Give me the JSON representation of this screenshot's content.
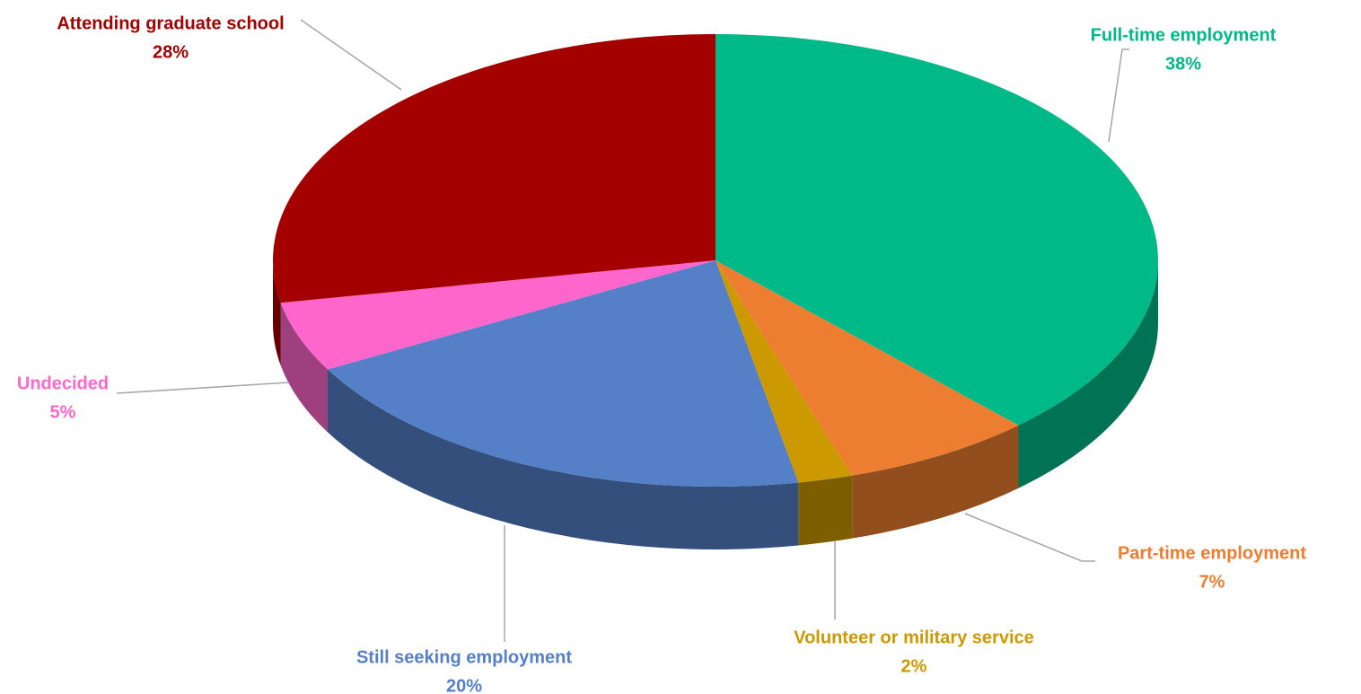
{
  "chart_data": {
    "type": "pie",
    "categories": [
      "Full-time employment",
      "Part-time employment",
      "Volunteer or military service",
      "Still seeking employment",
      "Undecided",
      "Attending graduate school"
    ],
    "values": [
      38,
      7,
      2,
      20,
      5,
      28
    ],
    "value_labels": [
      "38%",
      "7%",
      "2%",
      "20%",
      "5%",
      "28%"
    ],
    "colors": [
      "#00b988",
      "#ed7d31",
      "#cc9900",
      "#5580c8",
      "#ff66cc",
      "#a50000"
    ]
  }
}
